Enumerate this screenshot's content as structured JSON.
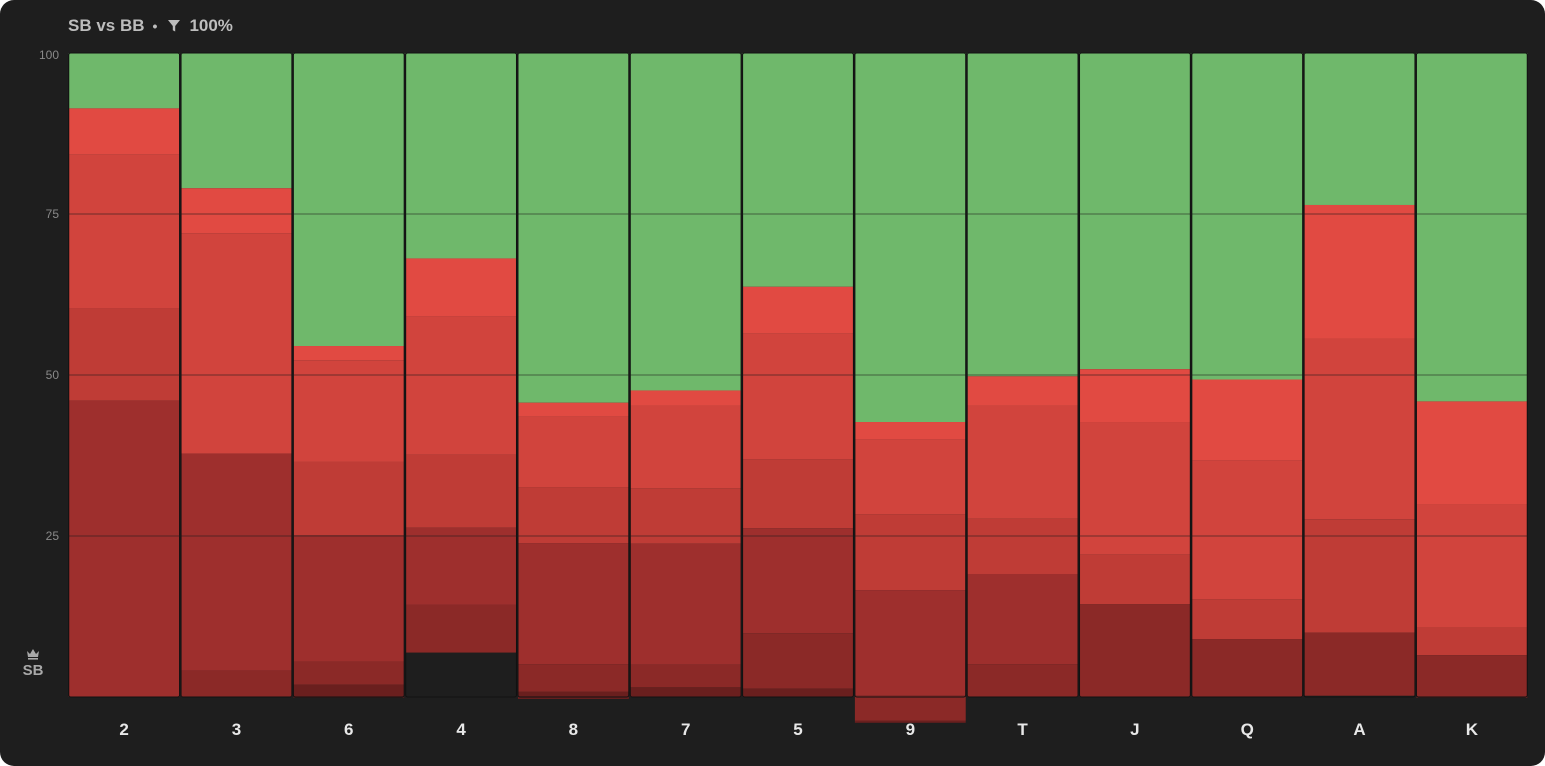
{
  "header": {
    "title": "SB vs BB",
    "separator": "•",
    "filter_icon": "filter-icon",
    "filter_value": "100%"
  },
  "player_label": {
    "icon": "crown-icon",
    "text": "SB"
  },
  "chart_data": {
    "type": "bar",
    "stacked": true,
    "normalized_to": 100,
    "categories": [
      "2",
      "3",
      "6",
      "4",
      "8",
      "7",
      "5",
      "9",
      "T",
      "J",
      "Q",
      "A",
      "K"
    ],
    "y_ticks": [
      "100",
      "75",
      "50",
      "25"
    ],
    "ylim": [
      0,
      100
    ],
    "grid": true,
    "series": [
      {
        "color": "#6fb86b",
        "values": [
          8.6,
          21.0,
          45.5,
          31.9,
          54.3,
          52.4,
          36.3,
          57.3,
          50.2,
          49.1,
          50.7,
          23.6,
          54.1
        ]
      },
      {
        "color": "#e14a42",
        "values": [
          7.2,
          7.0,
          2.2,
          9.0,
          2.2,
          2.4,
          7.3,
          2.7,
          4.6,
          8.2,
          12.6,
          20.8,
          16.0
        ]
      },
      {
        "color": "#d1443d",
        "values": [
          23.8,
          34.2,
          15.8,
          21.5,
          10.9,
          12.8,
          19.5,
          11.6,
          17.5,
          20.6,
          21.5,
          28.0,
          19.1
        ]
      },
      {
        "color": "#bf3c36",
        "values": [
          14.4,
          0,
          11.4,
          11.3,
          8.7,
          8.6,
          10.7,
          11.8,
          8.6,
          7.7,
          6.2,
          17.6,
          4.3
        ]
      },
      {
        "color": "#9e2f2d",
        "values": [
          46.0,
          33.7,
          19.6,
          12.0,
          18.8,
          18.8,
          16.3,
          16.4,
          14.0,
          0,
          0,
          0,
          0
        ]
      },
      {
        "color": "#8b2927",
        "values": [
          0,
          4.1,
          3.6,
          7.4,
          4.3,
          3.5,
          8.6,
          3.9,
          5.1,
          14.4,
          9.0,
          9.8,
          6.6
        ]
      },
      {
        "color": "#6a1f1e",
        "values": [
          0,
          0,
          2.0,
          0,
          1.1,
          1.5,
          1.3,
          0.3,
          0,
          0,
          0,
          0,
          0
        ]
      }
    ]
  }
}
